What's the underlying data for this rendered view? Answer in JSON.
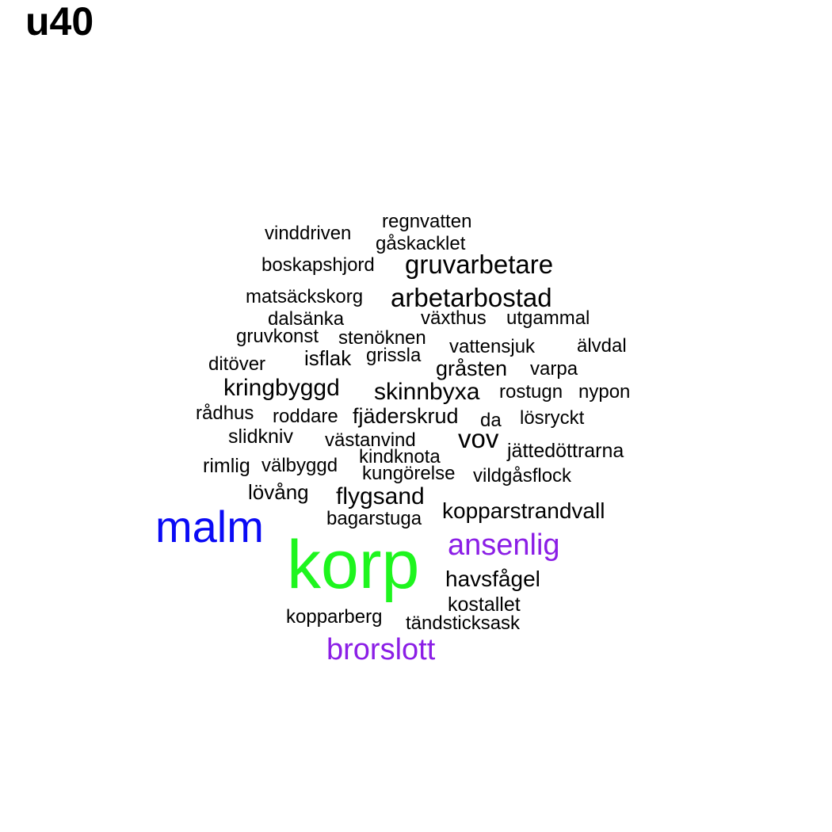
{
  "chart_data": {
    "type": "wordcloud",
    "title": "u40",
    "colors": {
      "black": "#000000",
      "purple": "#8b1ee6",
      "blue": "#0a0af5",
      "green": "#1ef51e"
    },
    "words": [
      {
        "text": "korp",
        "weight": 100,
        "color": "#1ef51e"
      },
      {
        "text": "malm",
        "weight": 80,
        "color": "#0a0af5"
      },
      {
        "text": "ansenlig",
        "weight": 57,
        "color": "#8b1ee6"
      },
      {
        "text": "brorslott",
        "weight": 57,
        "color": "#8b1ee6"
      },
      {
        "text": "arbetarbostad",
        "weight": 47,
        "color": "#000000"
      },
      {
        "text": "gruvarbetare",
        "weight": 47,
        "color": "#000000"
      },
      {
        "text": "kringbyggd",
        "weight": 45,
        "color": "#000000"
      },
      {
        "text": "skinnbyxa",
        "weight": 45,
        "color": "#000000"
      },
      {
        "text": "vov",
        "weight": 47,
        "color": "#000000"
      },
      {
        "text": "flygsand",
        "weight": 45,
        "color": "#000000"
      },
      {
        "text": "kopparstrandvall",
        "weight": 42,
        "color": "#000000"
      },
      {
        "text": "havsfågel",
        "weight": 42,
        "color": "#000000"
      },
      {
        "text": "gråsten",
        "weight": 42,
        "color": "#000000"
      },
      {
        "text": "fjäderskrud",
        "weight": 42,
        "color": "#000000"
      },
      {
        "text": "isflak",
        "weight": 40,
        "color": "#000000"
      },
      {
        "text": "lövång",
        "weight": 40,
        "color": "#000000"
      },
      {
        "text": "slidkniv",
        "weight": 40,
        "color": "#000000"
      },
      {
        "text": "rimlig",
        "weight": 40,
        "color": "#000000"
      },
      {
        "text": "kostallet",
        "weight": 40,
        "color": "#000000"
      },
      {
        "text": "jättedöttrarna",
        "weight": 40,
        "color": "#000000"
      },
      {
        "text": "regnvatten",
        "weight": 38,
        "color": "#000000"
      },
      {
        "text": "vinddriven",
        "weight": 38,
        "color": "#000000"
      },
      {
        "text": "gåskacklet",
        "weight": 38,
        "color": "#000000"
      },
      {
        "text": "boskapshjord",
        "weight": 38,
        "color": "#000000"
      },
      {
        "text": "matsäckskorg",
        "weight": 38,
        "color": "#000000"
      },
      {
        "text": "dalsänka",
        "weight": 38,
        "color": "#000000"
      },
      {
        "text": "växthus",
        "weight": 38,
        "color": "#000000"
      },
      {
        "text": "utgammal",
        "weight": 38,
        "color": "#000000"
      },
      {
        "text": "gruvkonst",
        "weight": 38,
        "color": "#000000"
      },
      {
        "text": "stenöknen",
        "weight": 38,
        "color": "#000000"
      },
      {
        "text": "vattensjuk",
        "weight": 38,
        "color": "#000000"
      },
      {
        "text": "älvdal",
        "weight": 38,
        "color": "#000000"
      },
      {
        "text": "ditöver",
        "weight": 38,
        "color": "#000000"
      },
      {
        "text": "grissla",
        "weight": 38,
        "color": "#000000"
      },
      {
        "text": "varpa",
        "weight": 38,
        "color": "#000000"
      },
      {
        "text": "rostugn",
        "weight": 38,
        "color": "#000000"
      },
      {
        "text": "nypon",
        "weight": 38,
        "color": "#000000"
      },
      {
        "text": "rådhus",
        "weight": 38,
        "color": "#000000"
      },
      {
        "text": "roddare",
        "weight": 38,
        "color": "#000000"
      },
      {
        "text": "da",
        "weight": 38,
        "color": "#000000"
      },
      {
        "text": "lösryckt",
        "weight": 38,
        "color": "#000000"
      },
      {
        "text": "västanvind",
        "weight": 38,
        "color": "#000000"
      },
      {
        "text": "välbyggd",
        "weight": 38,
        "color": "#000000"
      },
      {
        "text": "kindknota",
        "weight": 38,
        "color": "#000000"
      },
      {
        "text": "kungörelse",
        "weight": 38,
        "color": "#000000"
      },
      {
        "text": "vildgåsflock",
        "weight": 38,
        "color": "#000000"
      },
      {
        "text": "bagarstuga",
        "weight": 38,
        "color": "#000000"
      },
      {
        "text": "kopparberg",
        "weight": 38,
        "color": "#000000"
      },
      {
        "text": "tändsticksask",
        "weight": 38,
        "color": "#000000"
      }
    ]
  }
}
